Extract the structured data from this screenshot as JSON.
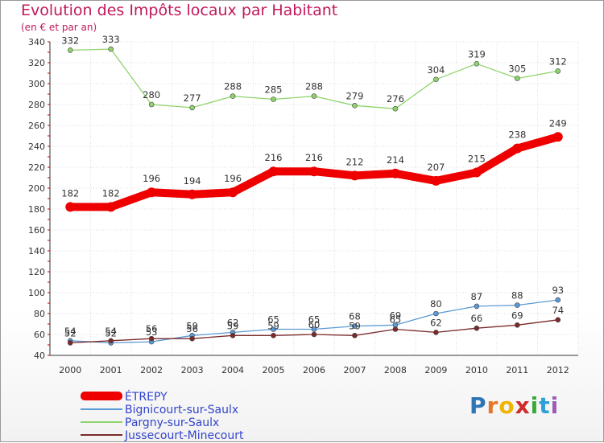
{
  "header": {
    "title": "Evolution des Impôts locaux par Habitant",
    "subtitle": "(en € et par an)"
  },
  "chart_data": {
    "type": "line",
    "title": "Evolution des Impôts locaux par Habitant",
    "subtitle": "(en € et par an)",
    "x": [
      "2000",
      "2001",
      "2002",
      "2003",
      "2004",
      "2005",
      "2006",
      "2007",
      "2008",
      "2009",
      "2010",
      "2011",
      "2012"
    ],
    "ylim": [
      40,
      340
    ],
    "yticks": [
      40,
      60,
      80,
      100,
      120,
      140,
      160,
      180,
      200,
      220,
      240,
      260,
      280,
      300,
      320,
      340
    ],
    "ytick_labels": [
      "40",
      "60",
      "80",
      "100",
      "120",
      "140",
      "160",
      "180",
      "200",
      "220",
      "240",
      "260",
      "280",
      "300",
      "320",
      "340"
    ],
    "grid": true,
    "legend_position": "bottom-left",
    "series": [
      {
        "name": "ÉTREPY",
        "color": "#ee0000",
        "values": [
          182,
          182,
          196,
          194,
          196,
          216,
          216,
          212,
          214,
          207,
          215,
          238,
          249
        ]
      },
      {
        "name": "Bignicourt-sur-Saulx",
        "color": "#5b9bd5",
        "values": [
          54,
          52,
          53,
          59,
          62,
          65,
          65,
          68,
          69,
          80,
          87,
          88,
          93
        ]
      },
      {
        "name": "Pargny-sur-Saulx",
        "color": "#8fd36c",
        "values": [
          332,
          333,
          280,
          277,
          288,
          285,
          288,
          279,
          276,
          304,
          319,
          305,
          312
        ]
      },
      {
        "name": "Jussecourt-Minecourt",
        "color": "#7a2a2a",
        "values": [
          52,
          54,
          56,
          56,
          59,
          59,
          60,
          59,
          65,
          62,
          66,
          69,
          74
        ]
      }
    ],
    "data_labels": [
      {
        "series": "ÉTREPY",
        "labels": [
          "182",
          "182",
          "196",
          "194",
          "196",
          "216",
          "216",
          "212",
          "214",
          "207",
          "215",
          "238",
          "249"
        ]
      },
      {
        "series": "Bignicourt-sur-Saulx",
        "labels": [
          "54",
          "52",
          "53",
          "59",
          "62",
          "65",
          "65",
          "68",
          "69",
          "80",
          "87",
          "88",
          "93"
        ]
      },
      {
        "series": "Pargny-sur-Saulx",
        "labels": [
          "332",
          "333",
          "280",
          "277",
          "288",
          "285",
          "288",
          "279",
          "276",
          "304",
          "319",
          "305",
          "312"
        ]
      },
      {
        "series": "Jussecourt-Minecourt",
        "labels": [
          "52",
          "54",
          "56",
          "56",
          "59",
          "59",
          "60",
          "59",
          "65",
          "62",
          "66",
          "69",
          "74"
        ]
      }
    ]
  },
  "legend": {
    "items": [
      {
        "label": "ÉTREPY",
        "color": "#ee0000"
      },
      {
        "label": "Bignicourt-sur-Saulx",
        "color": "#5b9bd5"
      },
      {
        "label": "Pargny-sur-Saulx",
        "color": "#8fd36c"
      },
      {
        "label": "Jussecourt-Minecourt",
        "color": "#7a2a2a"
      }
    ]
  },
  "logo": {
    "letters": [
      "P",
      "r",
      "o",
      "x",
      "i",
      "t",
      "i"
    ],
    "colors": [
      "#2e75b6",
      "#e8752a",
      "#f0b400",
      "#d12b2b",
      "#38a83c",
      "#2e9fd8",
      "#9c5bb5"
    ]
  }
}
